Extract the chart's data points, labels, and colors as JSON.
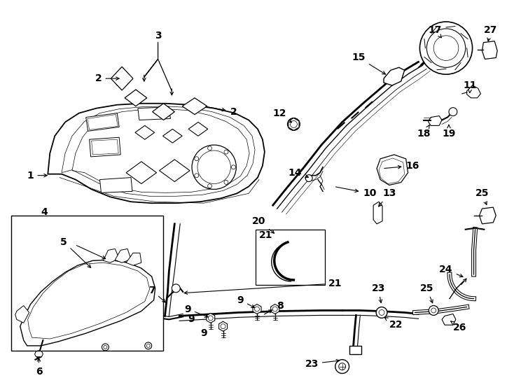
{
  "bg_color": "#ffffff",
  "line_color": "#000000",
  "fig_w": 7.34,
  "fig_h": 5.4,
  "dpi": 100
}
